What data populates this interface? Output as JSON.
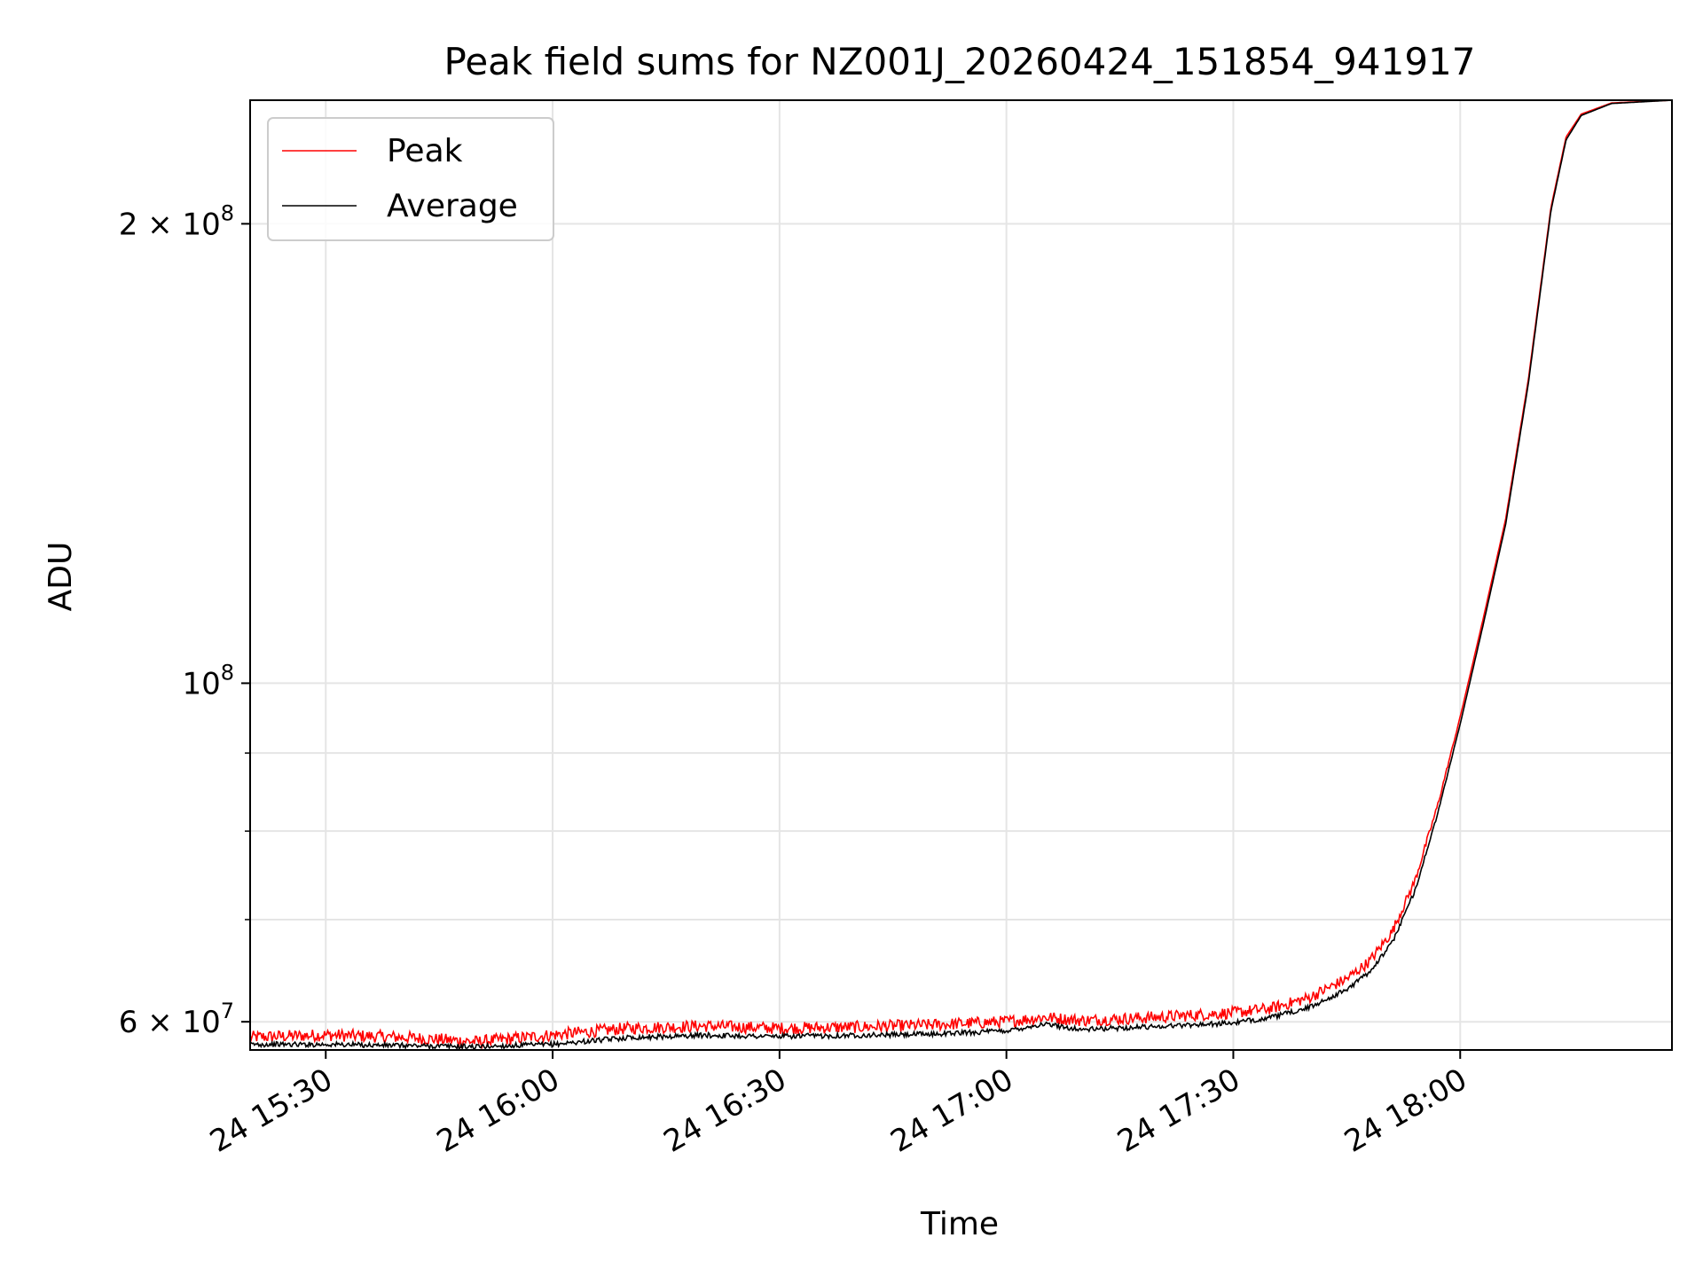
{
  "chart_data": {
    "type": "line",
    "title": "Peak field sums for NZ001J_20260424_151854_941917",
    "xlabel": "Time",
    "ylabel": "ADU",
    "yscale": "log",
    "grid": true,
    "legend_position": "top-left",
    "x_unit": "date-time",
    "xlim": [
      "2026-04-24T15:20",
      "2026-04-24T18:28"
    ],
    "ylim": [
      57500000,
      241000000
    ],
    "x_ticks": [
      {
        "value": "2026-04-24T15:30",
        "label": "24 15:30"
      },
      {
        "value": "2026-04-24T16:00",
        "label": "24 16:00"
      },
      {
        "value": "2026-04-24T16:30",
        "label": "24 16:30"
      },
      {
        "value": "2026-04-24T17:00",
        "label": "24 17:00"
      },
      {
        "value": "2026-04-24T17:30",
        "label": "24 17:30"
      },
      {
        "value": "2026-04-24T18:00",
        "label": "24 18:00"
      }
    ],
    "y_major_ticks": [
      {
        "value": 60000000,
        "base": "6 × 10",
        "exp": "7"
      },
      {
        "value": 100000000,
        "base": "10",
        "exp": "8"
      },
      {
        "value": 200000000,
        "base": "2 × 10",
        "exp": "8"
      }
    ],
    "y_minor_ticks": [
      70000000,
      80000000,
      90000000
    ],
    "series": [
      {
        "name": "Peak",
        "color": "#ff0000",
        "points": [
          [
            "2026-04-24T15:20",
            58400000
          ],
          [
            "2026-04-24T15:30",
            58600000
          ],
          [
            "2026-04-24T15:40",
            58400000
          ],
          [
            "2026-04-24T15:50",
            58000000
          ],
          [
            "2026-04-24T16:00",
            58600000
          ],
          [
            "2026-04-24T16:10",
            59200000
          ],
          [
            "2026-04-24T16:20",
            59400000
          ],
          [
            "2026-04-24T16:30",
            59200000
          ],
          [
            "2026-04-24T16:40",
            59300000
          ],
          [
            "2026-04-24T16:50",
            59500000
          ],
          [
            "2026-04-24T17:00",
            59800000
          ],
          [
            "2026-04-24T17:05",
            60200000
          ],
          [
            "2026-04-24T17:10",
            59900000
          ],
          [
            "2026-04-24T17:20",
            60200000
          ],
          [
            "2026-04-24T17:30",
            60600000
          ],
          [
            "2026-04-24T17:35",
            61000000
          ],
          [
            "2026-04-24T17:40",
            62000000
          ],
          [
            "2026-04-24T17:45",
            63800000
          ],
          [
            "2026-04-24T17:48",
            65500000
          ],
          [
            "2026-04-24T17:51",
            68500000
          ],
          [
            "2026-04-24T17:54",
            74000000
          ],
          [
            "2026-04-24T17:57",
            83000000
          ],
          [
            "2026-04-24T18:00",
            95000000
          ],
          [
            "2026-04-24T18:03",
            110000000
          ],
          [
            "2026-04-24T18:06",
            128000000
          ],
          [
            "2026-04-24T18:09",
            158000000
          ],
          [
            "2026-04-24T18:12",
            205000000
          ],
          [
            "2026-04-24T18:14",
            228000000
          ],
          [
            "2026-04-24T18:16",
            236000000
          ],
          [
            "2026-04-24T18:20",
            240000000
          ],
          [
            "2026-04-24T18:28",
            241000000
          ]
        ]
      },
      {
        "name": "Average",
        "color": "#000000",
        "points": [
          [
            "2026-04-24T15:20",
            57900000
          ],
          [
            "2026-04-24T15:30",
            57900000
          ],
          [
            "2026-04-24T15:40",
            57800000
          ],
          [
            "2026-04-24T15:50",
            57700000
          ],
          [
            "2026-04-24T16:00",
            57900000
          ],
          [
            "2026-04-24T16:10",
            58500000
          ],
          [
            "2026-04-24T16:20",
            58700000
          ],
          [
            "2026-04-24T16:30",
            58600000
          ],
          [
            "2026-04-24T16:40",
            58700000
          ],
          [
            "2026-04-24T16:50",
            58800000
          ],
          [
            "2026-04-24T17:00",
            59100000
          ],
          [
            "2026-04-24T17:05",
            59700000
          ],
          [
            "2026-04-24T17:10",
            59200000
          ],
          [
            "2026-04-24T17:20",
            59500000
          ],
          [
            "2026-04-24T17:30",
            59800000
          ],
          [
            "2026-04-24T17:35",
            60300000
          ],
          [
            "2026-04-24T17:40",
            61200000
          ],
          [
            "2026-04-24T17:45",
            62900000
          ],
          [
            "2026-04-24T17:48",
            64600000
          ],
          [
            "2026-04-24T17:51",
            67500000
          ],
          [
            "2026-04-24T17:54",
            73000000
          ],
          [
            "2026-04-24T17:57",
            82000000
          ],
          [
            "2026-04-24T18:00",
            94000000
          ],
          [
            "2026-04-24T18:03",
            109000000
          ],
          [
            "2026-04-24T18:06",
            127000000
          ],
          [
            "2026-04-24T18:09",
            157000000
          ],
          [
            "2026-04-24T18:12",
            204000000
          ],
          [
            "2026-04-24T18:14",
            227000000
          ],
          [
            "2026-04-24T18:16",
            235500000
          ],
          [
            "2026-04-24T18:20",
            239800000
          ],
          [
            "2026-04-24T18:28",
            241000000
          ]
        ]
      }
    ]
  }
}
